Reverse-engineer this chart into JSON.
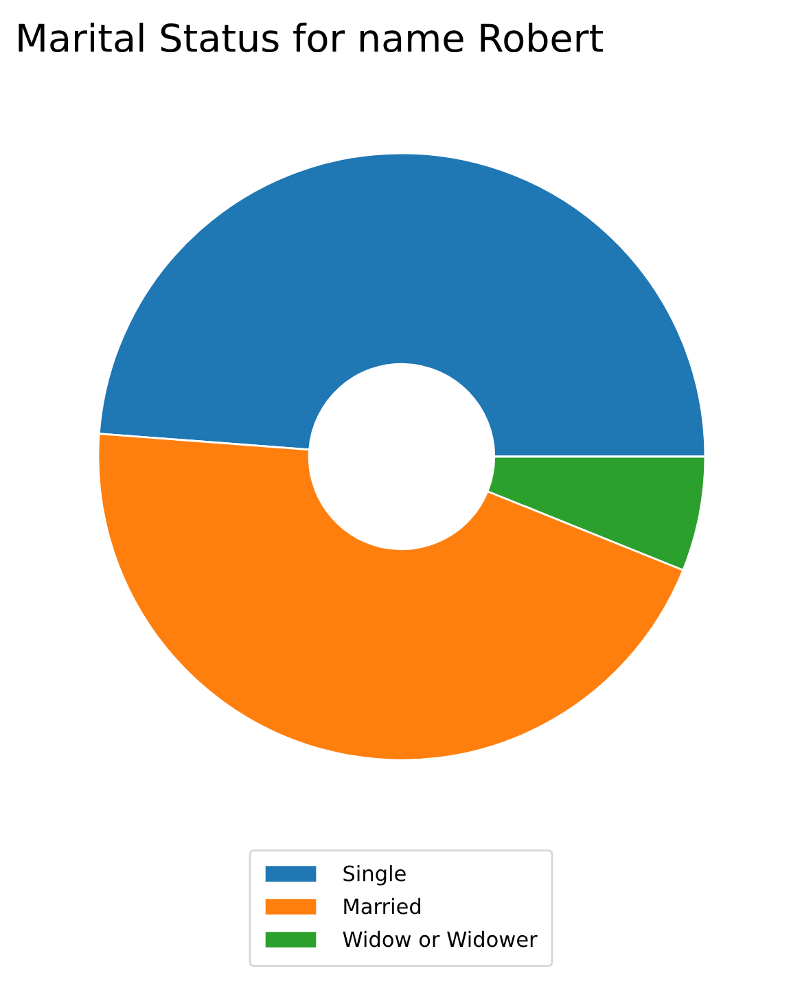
{
  "chart_data": {
    "type": "donut",
    "title": "Marital Status for name Robert",
    "categories": [
      "Single",
      "Married",
      "Widow or Widower"
    ],
    "values": [
      48.8,
      45.1,
      6.1
    ],
    "colors": [
      "#1f77b4",
      "#ff7f0e",
      "#2ca02c"
    ],
    "legend": "bottom"
  }
}
